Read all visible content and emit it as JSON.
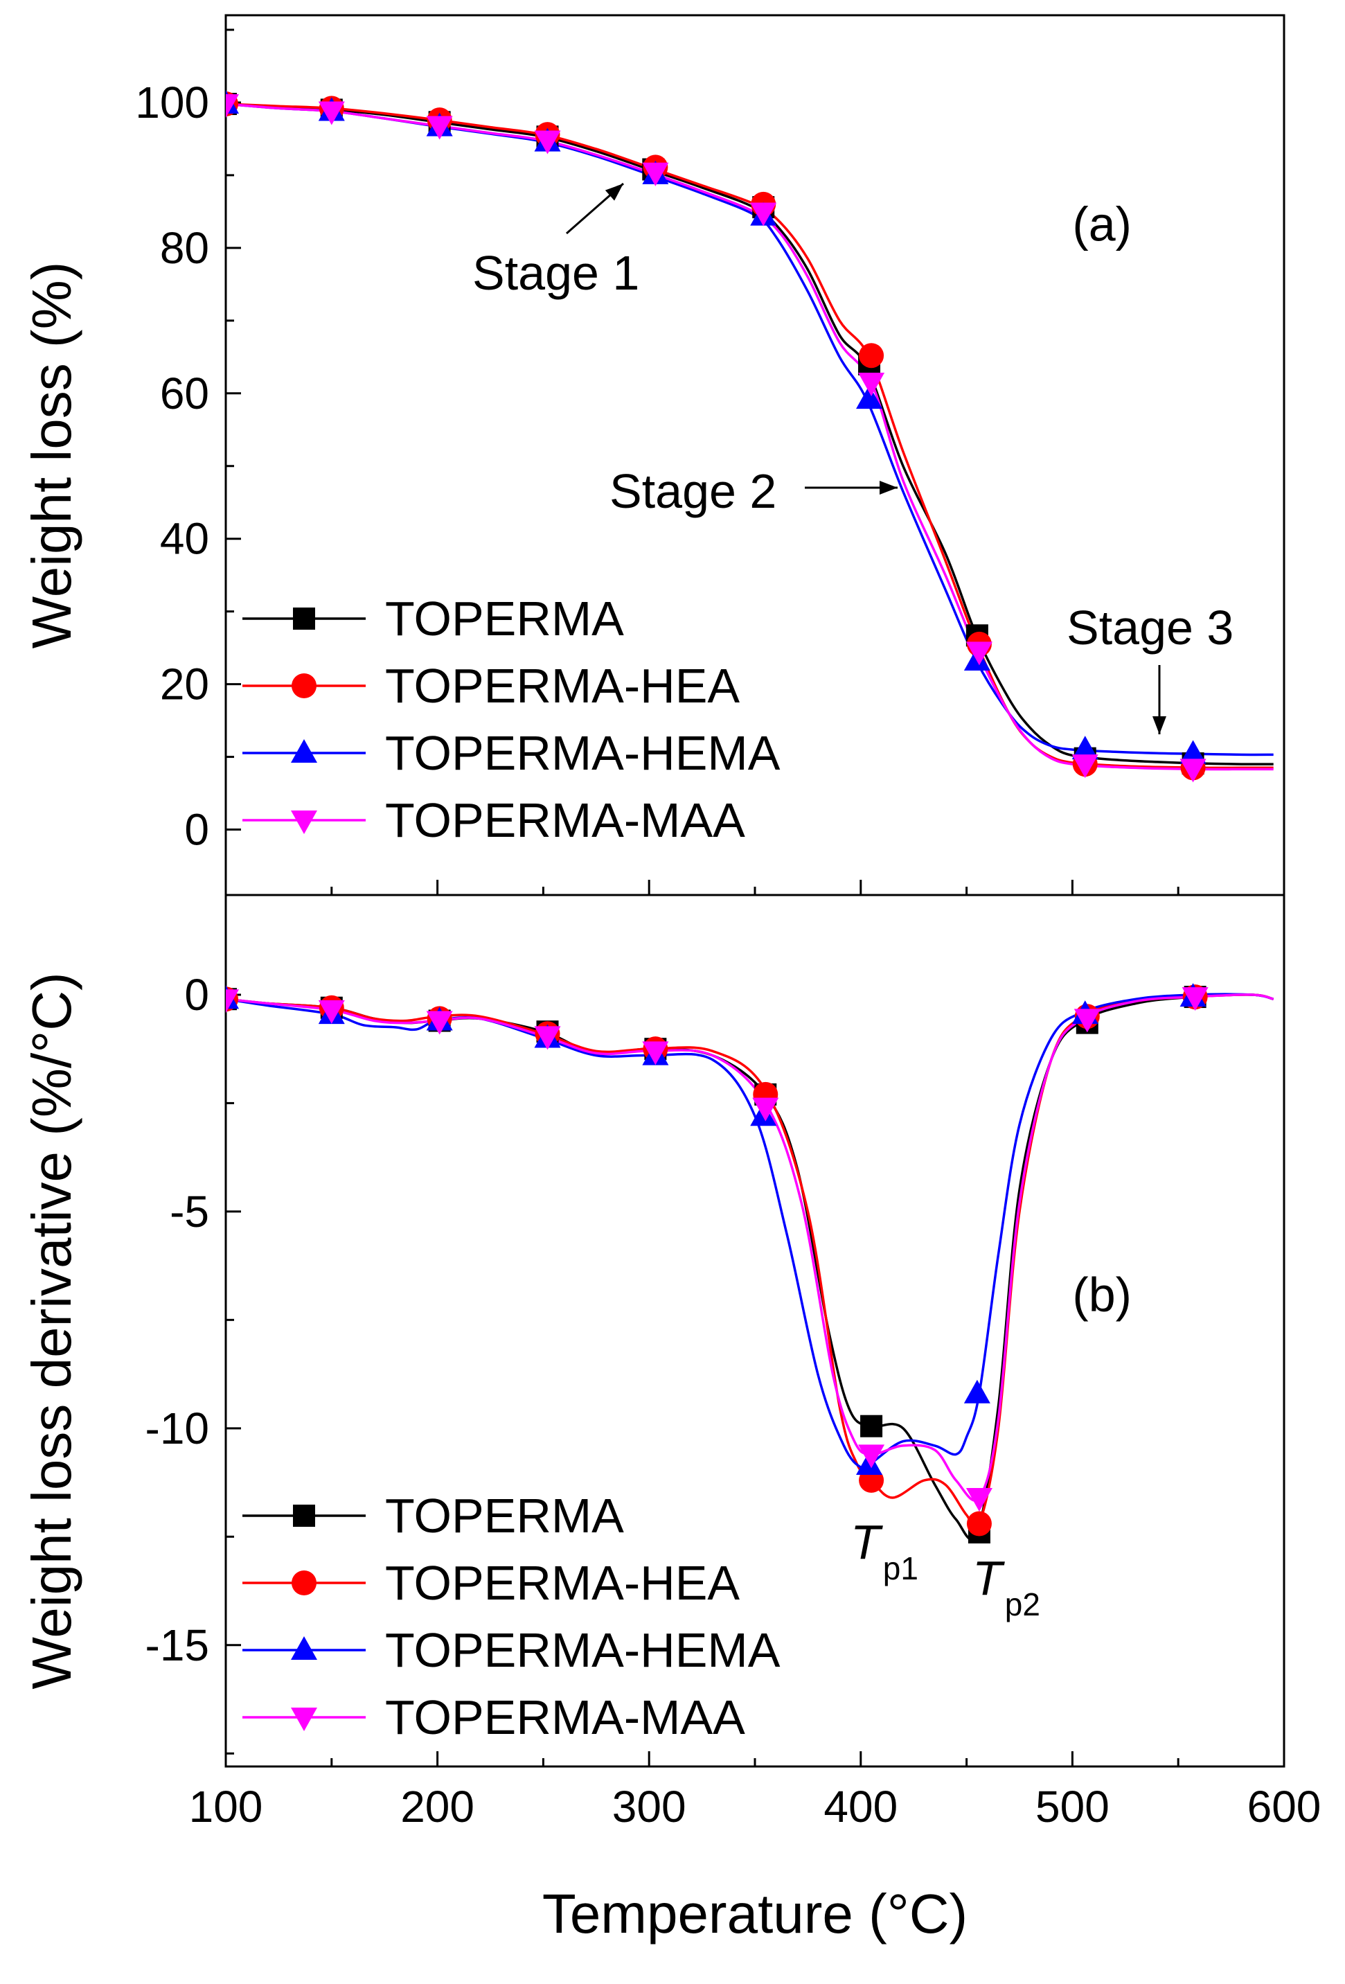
{
  "chart_data": [
    {
      "type": "line",
      "panel_label": "(a)",
      "ylabel": "Weight loss (%)",
      "ylim": [
        -9,
        112
      ],
      "yticks": [
        0,
        20,
        40,
        60,
        80,
        100
      ],
      "xlim": [
        100,
        600
      ],
      "grid": false,
      "legend_position": "bottom-left",
      "series": [
        {
          "name": "TOPERMA",
          "color": "#000000",
          "marker": "square",
          "x": [
            100,
            125,
            150,
            175,
            200,
            225,
            250,
            275,
            300,
            325,
            350,
            362,
            375,
            390,
            403,
            420,
            440,
            455,
            470,
            480,
            490,
            500,
            520,
            540,
            560,
            580,
            595
          ],
          "y": [
            99.8,
            99.4,
            99,
            98.3,
            97.3,
            96.3,
            95.3,
            93.3,
            90.8,
            88.3,
            85.5,
            82.5,
            77,
            68,
            63.5,
            50,
            38,
            26.5,
            18,
            14,
            11.5,
            10.2,
            9.6,
            9.3,
            9.1,
            9,
            9
          ],
          "markers_x": [
            100,
            150,
            201,
            252,
            302,
            354,
            404,
            455,
            506,
            557
          ],
          "markers_y": [
            99.8,
            99,
            97.3,
            95.3,
            90.8,
            85.6,
            64,
            26.7,
            9.8,
            9.1
          ]
        },
        {
          "name": "TOPERMA-HEA",
          "color": "#ff0000",
          "marker": "circle",
          "x": [
            100,
            125,
            150,
            175,
            200,
            225,
            250,
            275,
            300,
            325,
            350,
            362,
            375,
            390,
            404,
            420,
            440,
            455,
            470,
            480,
            490,
            500,
            520,
            540,
            560,
            580,
            595
          ],
          "y": [
            99.8,
            99.5,
            99.2,
            98.5,
            97.6,
            96.6,
            95.6,
            93.6,
            91.1,
            88.6,
            86,
            83.5,
            78.5,
            70,
            65,
            52,
            37,
            25.5,
            16,
            12,
            10,
            9.2,
            8.8,
            8.6,
            8.5,
            8.5,
            8.5
          ],
          "markers_x": [
            100,
            150,
            201,
            252,
            303,
            354,
            405,
            456,
            506,
            557
          ],
          "markers_y": [
            99.8,
            99.2,
            97.6,
            95.6,
            91.1,
            86,
            65.2,
            25.5,
            9,
            8.5
          ]
        },
        {
          "name": "TOPERMA-HEMA",
          "color": "#0000ff",
          "marker": "triangle-up",
          "x": [
            100,
            125,
            150,
            175,
            200,
            225,
            250,
            275,
            300,
            325,
            350,
            360,
            375,
            390,
            403,
            420,
            440,
            455,
            470,
            480,
            490,
            500,
            520,
            540,
            560,
            580,
            595
          ],
          "y": [
            99.8,
            99.2,
            98.8,
            97.8,
            96.7,
            95.7,
            94.6,
            92.6,
            90.1,
            87.5,
            84.5,
            81.5,
            74,
            65,
            59,
            46.5,
            33,
            23,
            16,
            13,
            11.5,
            11,
            10.7,
            10.5,
            10.4,
            10.3,
            10.3
          ],
          "markers_x": [
            100,
            150,
            201,
            252,
            303,
            354,
            404,
            455,
            506,
            557
          ],
          "markers_y": [
            99.8,
            98.8,
            96.7,
            94.6,
            90.1,
            84.4,
            59.2,
            23.2,
            11,
            10.4
          ]
        },
        {
          "name": "TOPERMA-MAA",
          "color": "#ff00ff",
          "marker": "triangle-down",
          "x": [
            100,
            125,
            150,
            175,
            200,
            225,
            250,
            275,
            300,
            325,
            350,
            362,
            375,
            390,
            405,
            420,
            440,
            455,
            470,
            480,
            490,
            500,
            520,
            540,
            560,
            580,
            595
          ],
          "y": [
            99.8,
            99.2,
            98.8,
            97.8,
            96.8,
            95.8,
            94.8,
            92.8,
            90.4,
            87.8,
            84.9,
            82,
            76,
            67,
            61.5,
            48,
            35,
            24.5,
            16,
            12,
            9.8,
            9,
            8.6,
            8.4,
            8.3,
            8.3,
            8.3
          ],
          "markers_x": [
            100,
            150,
            201,
            252,
            303,
            354,
            405,
            456,
            506,
            557
          ],
          "markers_y": [
            99.8,
            98.8,
            96.8,
            94.8,
            90.4,
            84.9,
            61.5,
            24.5,
            9,
            8.4
          ]
        }
      ],
      "annotations": [
        {
          "text": "Stage 1",
          "arrow_from": [
            285,
            82
          ],
          "arrow_to": [
            294,
            87.5
          ]
        },
        {
          "text": "Stage 2",
          "arrow_from": [
            420,
            45
          ],
          "arrow_to": [
            414,
            45
          ]
        },
        {
          "text": "Stage 3",
          "arrow_from": [
            542,
            19
          ],
          "arrow_to": [
            542,
            13
          ]
        }
      ]
    },
    {
      "type": "line",
      "panel_label": "(b)",
      "ylabel": "Weight loss derivative (%/°C)",
      "ylim": [
        -17.8,
        2.3
      ],
      "yticks": [
        0,
        -5,
        -10,
        -15
      ],
      "xlabel": "Temperature (°C)",
      "xlim": [
        100,
        600
      ],
      "xticks": [
        100,
        200,
        300,
        400,
        500,
        600
      ],
      "grid": false,
      "legend_position": "bottom-left",
      "series": [
        {
          "name": "TOPERMA",
          "color": "#000000",
          "marker": "square",
          "x": [
            100,
            120,
            150,
            170,
            185,
            200,
            220,
            250,
            275,
            300,
            330,
            355,
            370,
            385,
            395,
            405,
            420,
            435,
            445,
            455,
            465,
            475,
            490,
            505,
            530,
            557,
            585,
            595
          ],
          "y": [
            -0.1,
            -0.2,
            -0.3,
            -0.55,
            -0.65,
            -0.6,
            -0.55,
            -0.85,
            -1.35,
            -1.25,
            -1.4,
            -2.3,
            -4,
            -7.8,
            -9.6,
            -9.95,
            -10,
            -11.3,
            -12.1,
            -12.4,
            -9.5,
            -4.5,
            -1.5,
            -0.6,
            -0.2,
            -0.05,
            0,
            -0.1
          ],
          "markers_x": [
            100,
            150,
            201,
            252,
            303,
            355,
            405,
            456,
            507,
            558
          ],
          "markers_y": [
            -0.1,
            -0.3,
            -0.6,
            -0.85,
            -1.25,
            -2.3,
            -9.95,
            -12.4,
            -0.65,
            -0.05
          ]
        },
        {
          "name": "TOPERMA-HEA",
          "color": "#ff0000",
          "marker": "circle",
          "x": [
            100,
            120,
            150,
            170,
            185,
            200,
            220,
            250,
            275,
            300,
            330,
            355,
            375,
            390,
            398,
            405,
            415,
            430,
            440,
            450,
            456,
            465,
            475,
            490,
            505,
            530,
            557,
            585,
            595
          ],
          "y": [
            -0.1,
            -0.2,
            -0.3,
            -0.55,
            -0.6,
            -0.5,
            -0.5,
            -0.9,
            -1.3,
            -1.25,
            -1.3,
            -2.2,
            -5,
            -9.5,
            -10.8,
            -11.2,
            -11.6,
            -11.2,
            -11.3,
            -12,
            -12.2,
            -10,
            -5,
            -1.5,
            -0.5,
            -0.15,
            -0.05,
            0,
            -0.1
          ],
          "markers_x": [
            100,
            150,
            201,
            252,
            303,
            355,
            405,
            456,
            507,
            558
          ],
          "markers_y": [
            -0.1,
            -0.3,
            -0.55,
            -0.9,
            -1.25,
            -2.3,
            -11.2,
            -12.2,
            -0.5,
            -0.05
          ]
        },
        {
          "name": "TOPERMA-HEMA",
          "color": "#0000ff",
          "marker": "triangle-up",
          "x": [
            100,
            120,
            150,
            165,
            180,
            190,
            200,
            220,
            250,
            275,
            300,
            330,
            350,
            365,
            380,
            392,
            400,
            405,
            420,
            435,
            445,
            450,
            456,
            465,
            475,
            490,
            505,
            530,
            557,
            585,
            595
          ],
          "y": [
            -0.1,
            -0.25,
            -0.45,
            -0.7,
            -0.75,
            -0.8,
            -0.6,
            -0.55,
            -1,
            -1.4,
            -1.4,
            -1.5,
            -2.8,
            -5.5,
            -8.8,
            -10.4,
            -10.9,
            -10.8,
            -10.3,
            -10.4,
            -10.6,
            -10.2,
            -9.2,
            -6,
            -3,
            -1,
            -0.4,
            -0.1,
            0,
            0,
            -0.1
          ],
          "markers_x": [
            100,
            150,
            201,
            252,
            303,
            354,
            404,
            455,
            506,
            557
          ],
          "markers_y": [
            -0.1,
            -0.45,
            -0.6,
            -1,
            -1.4,
            -2.8,
            -10.85,
            -9.2,
            -0.45,
            -0.05
          ]
        },
        {
          "name": "TOPERMA-MAA",
          "color": "#ff00ff",
          "marker": "triangle-down",
          "x": [
            100,
            120,
            150,
            170,
            185,
            200,
            220,
            250,
            275,
            300,
            330,
            355,
            372,
            387,
            397,
            405,
            420,
            435,
            445,
            456,
            465,
            475,
            490,
            505,
            530,
            557,
            585,
            595
          ],
          "y": [
            -0.1,
            -0.2,
            -0.35,
            -0.6,
            -0.65,
            -0.6,
            -0.55,
            -0.95,
            -1.35,
            -1.3,
            -1.4,
            -2.5,
            -4.8,
            -8.8,
            -10.3,
            -10.6,
            -10.4,
            -10.5,
            -11.2,
            -11.6,
            -9.8,
            -4.8,
            -1.5,
            -0.55,
            -0.15,
            -0.05,
            0,
            -0.1
          ],
          "markers_x": [
            100,
            150,
            201,
            252,
            303,
            355,
            405,
            456,
            507,
            558
          ],
          "markers_y": [
            -0.1,
            -0.35,
            -0.6,
            -0.95,
            -1.3,
            -2.6,
            -10.6,
            -11.6,
            -0.55,
            -0.05
          ]
        }
      ],
      "annotations": [
        {
          "text": "T",
          "sub": "p1",
          "x": 404,
          "y": -13.1
        },
        {
          "text": "T",
          "sub": "p2",
          "x": 460,
          "y": -14.2
        }
      ]
    }
  ]
}
